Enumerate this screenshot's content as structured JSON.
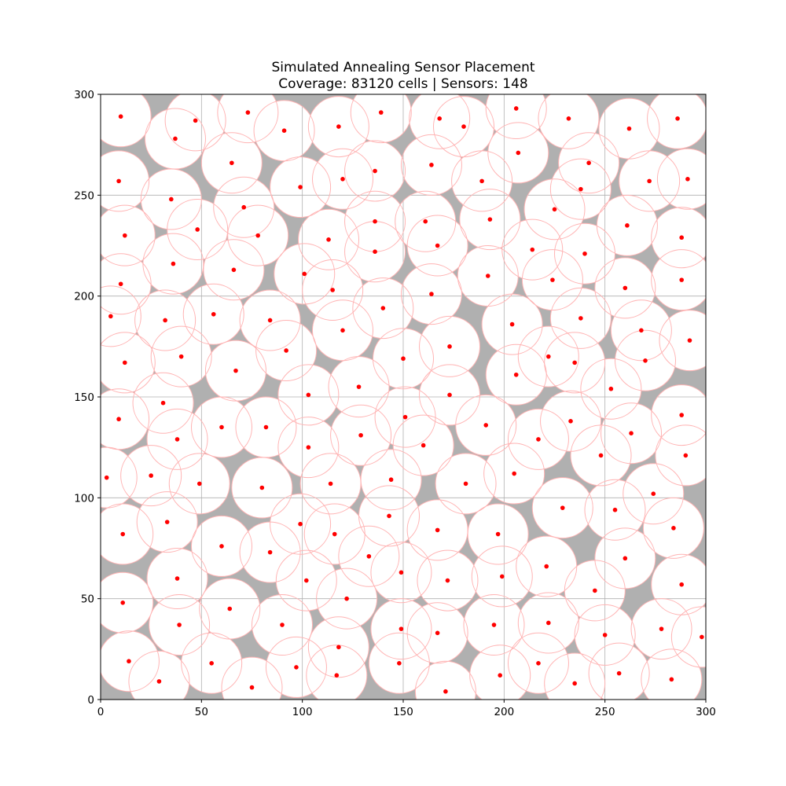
{
  "chart_data": {
    "type": "scatter",
    "title_line1": "Simulated Annealing Sensor Placement",
    "title_line2": "Coverage: 83120 cells | Sensors: 148",
    "xlabel": "",
    "ylabel": "",
    "xlim": [
      0,
      300
    ],
    "ylim": [
      0,
      300
    ],
    "xticks": [
      0,
      50,
      100,
      150,
      200,
      250,
      300
    ],
    "yticks": [
      0,
      50,
      100,
      150,
      200,
      250,
      300
    ],
    "xtick_labels": [
      "0",
      "50",
      "100",
      "150",
      "200",
      "250",
      "300"
    ],
    "ytick_labels": [
      "0",
      "50",
      "100",
      "150",
      "200",
      "250",
      "300"
    ],
    "grid": true,
    "sensor_radius": 15,
    "colors": {
      "uncovered": "#b0b0b0",
      "covered": "#ffffff",
      "sensor_point": "#ff0000",
      "coverage_circle": "#ffb3b3",
      "grid": "#b0b0b0"
    },
    "sensors": [
      [
        10,
        289
      ],
      [
        37,
        278
      ],
      [
        47,
        287
      ],
      [
        73,
        291
      ],
      [
        91,
        282
      ],
      [
        118,
        284
      ],
      [
        139,
        291
      ],
      [
        168,
        288
      ],
      [
        180,
        284
      ],
      [
        206,
        293
      ],
      [
        232,
        288
      ],
      [
        262,
        283
      ],
      [
        286,
        288
      ],
      [
        65,
        266
      ],
      [
        136,
        262
      ],
      [
        164,
        265
      ],
      [
        189,
        257
      ],
      [
        207,
        271
      ],
      [
        242,
        266
      ],
      [
        9,
        257
      ],
      [
        99,
        254
      ],
      [
        120,
        258
      ],
      [
        238,
        253
      ],
      [
        272,
        257
      ],
      [
        291,
        258
      ],
      [
        35,
        248
      ],
      [
        71,
        244
      ],
      [
        225,
        243
      ],
      [
        12,
        230
      ],
      [
        48,
        233
      ],
      [
        78,
        230
      ],
      [
        113,
        228
      ],
      [
        136,
        237
      ],
      [
        161,
        237
      ],
      [
        193,
        238
      ],
      [
        261,
        235
      ],
      [
        288,
        229
      ],
      [
        36,
        216
      ],
      [
        66,
        213
      ],
      [
        136,
        222
      ],
      [
        167,
        225
      ],
      [
        214,
        223
      ],
      [
        240,
        221
      ],
      [
        10,
        206
      ],
      [
        101,
        211
      ],
      [
        115,
        203
      ],
      [
        164,
        201
      ],
      [
        192,
        210
      ],
      [
        224,
        208
      ],
      [
        260,
        204
      ],
      [
        288,
        208
      ],
      [
        5,
        190
      ],
      [
        32,
        188
      ],
      [
        56,
        191
      ],
      [
        84,
        188
      ],
      [
        120,
        183
      ],
      [
        140,
        194
      ],
      [
        204,
        186
      ],
      [
        238,
        189
      ],
      [
        268,
        183
      ],
      [
        292,
        178
      ],
      [
        12,
        167
      ],
      [
        40,
        170
      ],
      [
        67,
        163
      ],
      [
        92,
        173
      ],
      [
        150,
        169
      ],
      [
        173,
        175
      ],
      [
        222,
        170
      ],
      [
        235,
        167
      ],
      [
        270,
        168
      ],
      [
        103,
        151
      ],
      [
        128,
        155
      ],
      [
        173,
        151
      ],
      [
        206,
        161
      ],
      [
        253,
        154
      ],
      [
        31,
        147
      ],
      [
        9,
        139
      ],
      [
        38,
        129
      ],
      [
        60,
        135
      ],
      [
        82,
        135
      ],
      [
        103,
        125
      ],
      [
        129,
        131
      ],
      [
        151,
        140
      ],
      [
        160,
        126
      ],
      [
        191,
        136
      ],
      [
        217,
        129
      ],
      [
        233,
        138
      ],
      [
        263,
        132
      ],
      [
        288,
        141
      ],
      [
        3,
        110
      ],
      [
        25,
        111
      ],
      [
        49,
        107
      ],
      [
        80,
        105
      ],
      [
        114,
        107
      ],
      [
        144,
        109
      ],
      [
        181,
        107
      ],
      [
        205,
        112
      ],
      [
        248,
        121
      ],
      [
        290,
        121
      ],
      [
        11,
        82
      ],
      [
        33,
        88
      ],
      [
        60,
        76
      ],
      [
        84,
        73
      ],
      [
        99,
        87
      ],
      [
        116,
        82
      ],
      [
        143,
        91
      ],
      [
        167,
        84
      ],
      [
        197,
        82
      ],
      [
        229,
        95
      ],
      [
        255,
        94
      ],
      [
        274,
        102
      ],
      [
        284,
        85
      ],
      [
        38,
        60
      ],
      [
        133,
        71
      ],
      [
        102,
        59
      ],
      [
        122,
        50
      ],
      [
        149,
        63
      ],
      [
        172,
        59
      ],
      [
        199,
        61
      ],
      [
        221,
        66
      ],
      [
        260,
        70
      ],
      [
        288,
        57
      ],
      [
        11,
        48
      ],
      [
        39,
        37
      ],
      [
        64,
        45
      ],
      [
        90,
        37
      ],
      [
        118,
        26
      ],
      [
        149,
        35
      ],
      [
        167,
        33
      ],
      [
        195,
        37
      ],
      [
        222,
        38
      ],
      [
        245,
        54
      ],
      [
        250,
        32
      ],
      [
        278,
        35
      ],
      [
        298,
        31
      ],
      [
        14,
        19
      ],
      [
        29,
        9
      ],
      [
        55,
        18
      ],
      [
        75,
        6
      ],
      [
        97,
        16
      ],
      [
        117,
        12
      ],
      [
        148,
        18
      ],
      [
        171,
        4
      ],
      [
        198,
        12
      ],
      [
        217,
        18
      ],
      [
        235,
        8
      ],
      [
        257,
        13
      ],
      [
        283,
        10
      ]
    ]
  }
}
